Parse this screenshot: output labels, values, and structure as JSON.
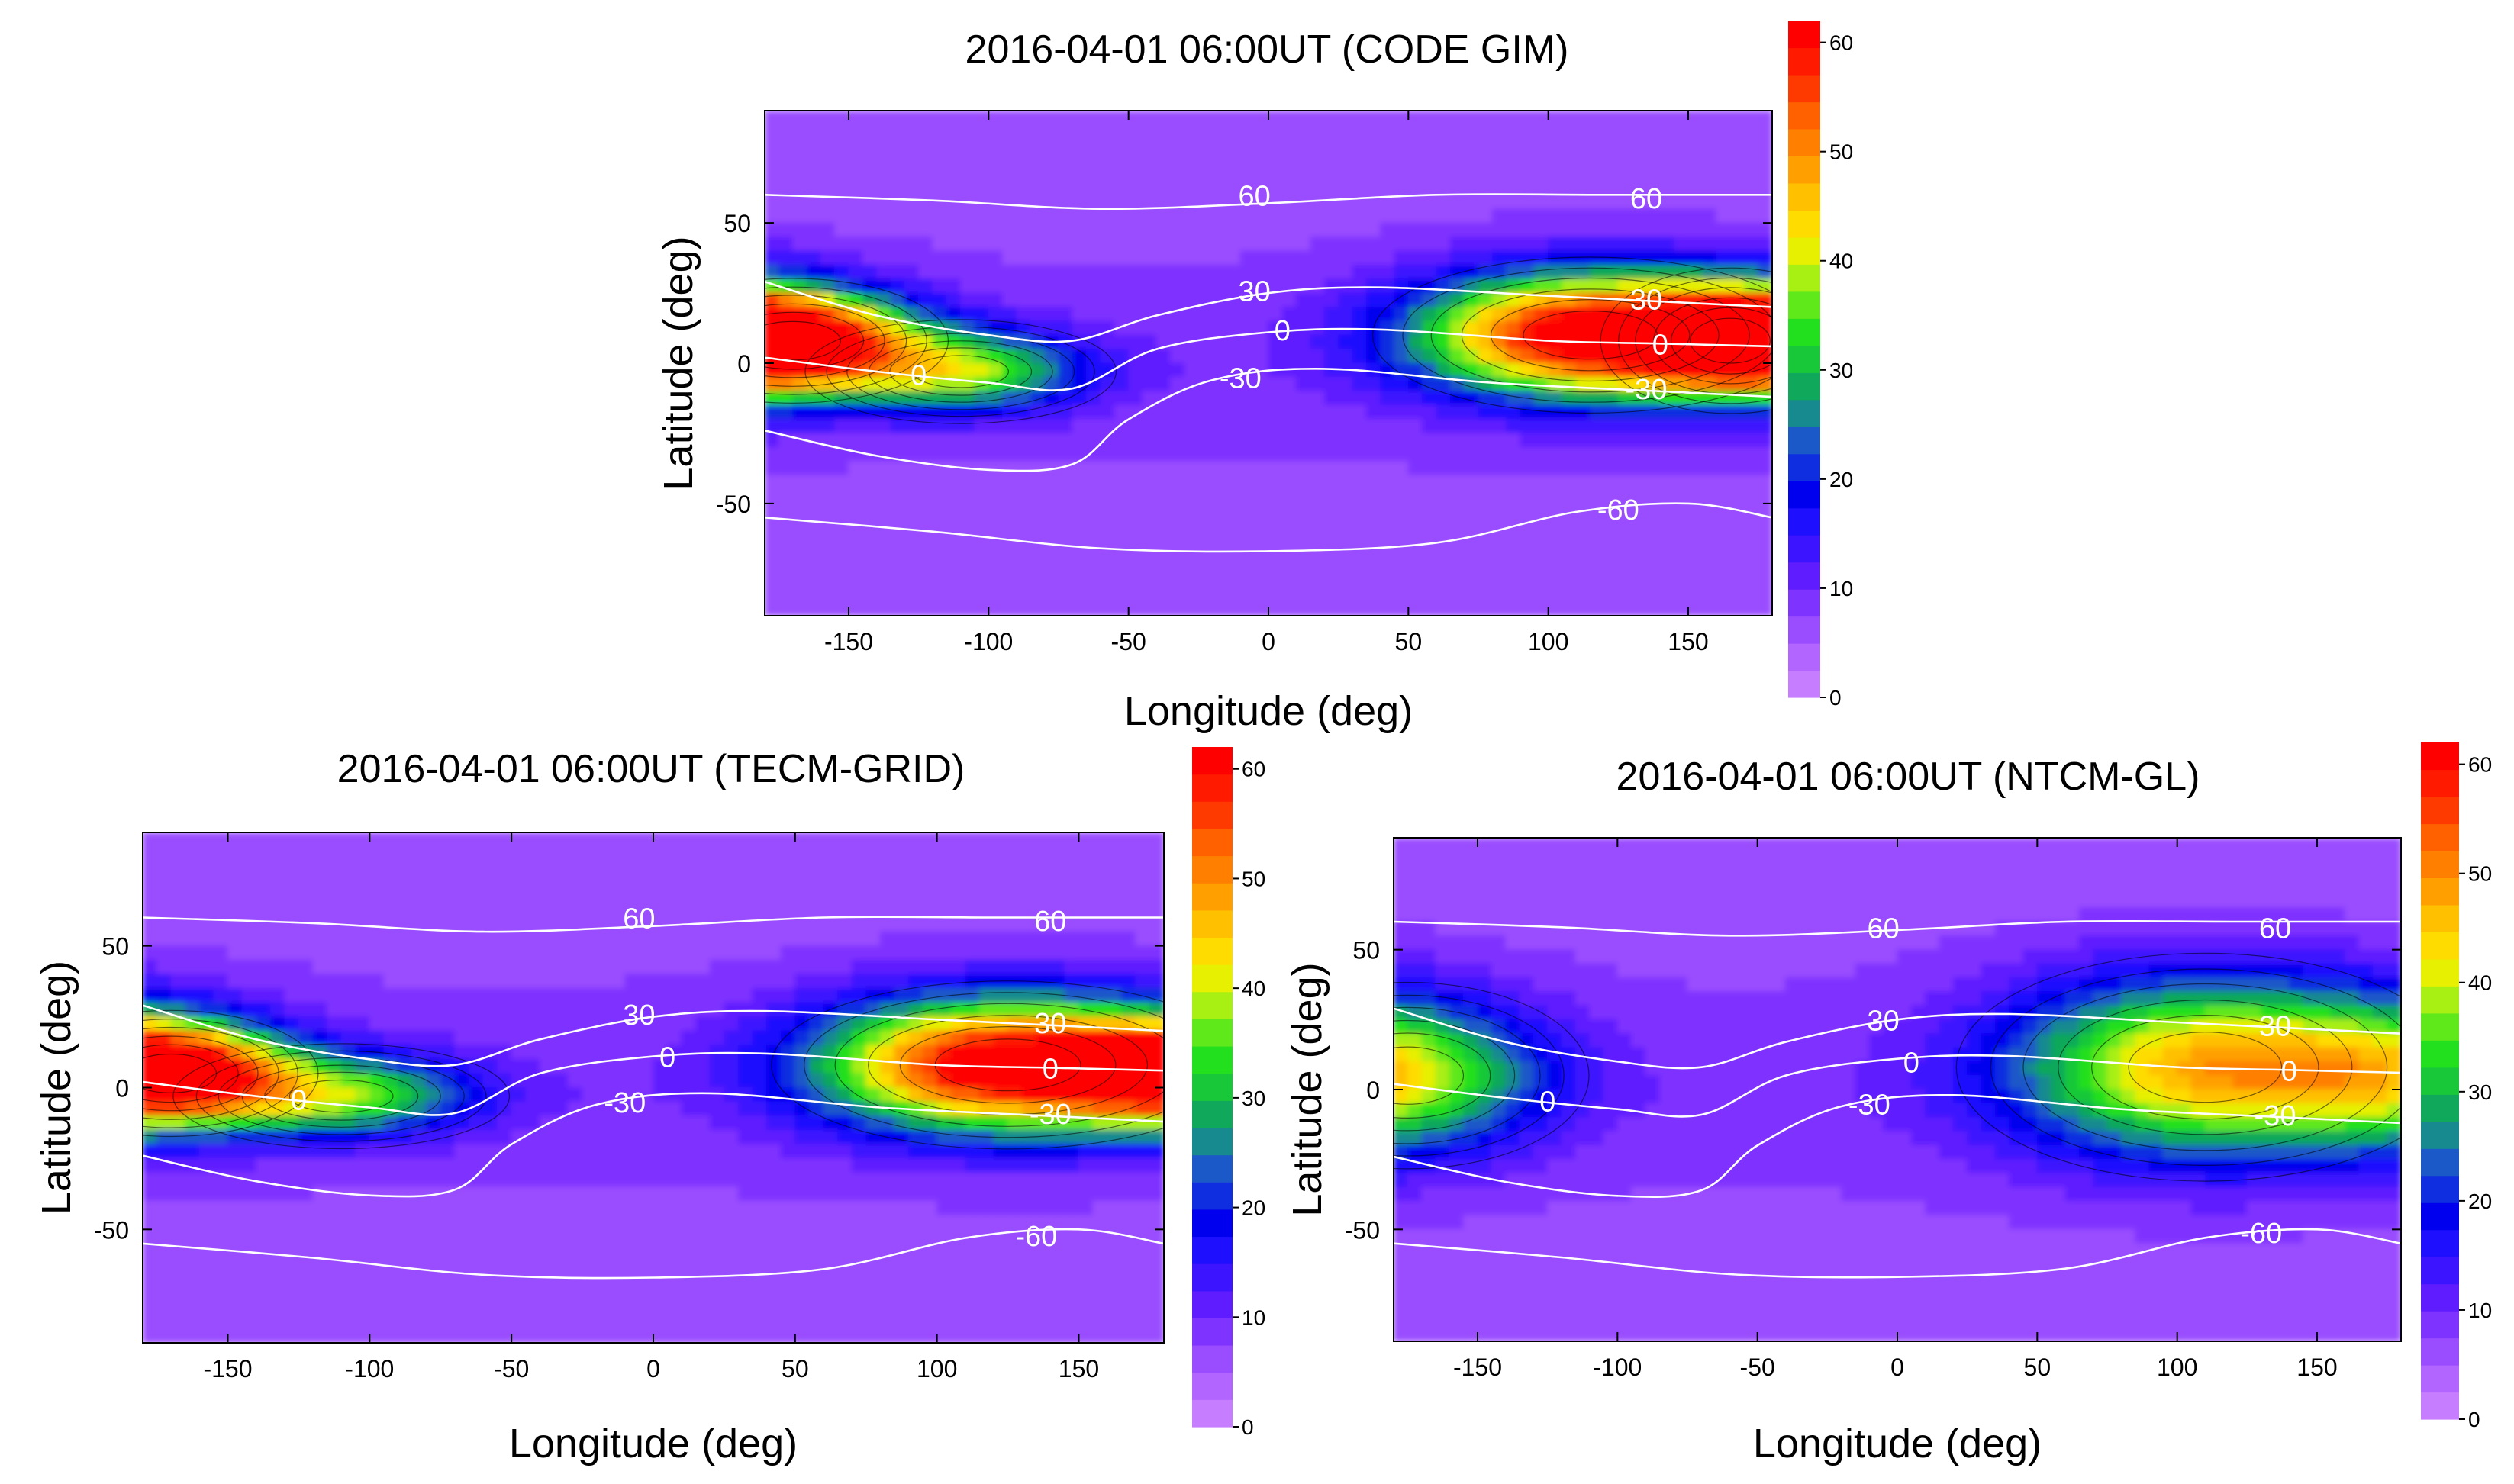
{
  "colors": {
    "scale": [
      "#c77dff",
      "#b266ff",
      "#9a4dff",
      "#7f33ff",
      "#5e1cff",
      "#3d14ff",
      "#1f0fff",
      "#0000ee",
      "#0e2ee0",
      "#1b58c8",
      "#178a8f",
      "#10a85a",
      "#18c838",
      "#22e01e",
      "#5fe81a",
      "#a8ef14",
      "#e6f000",
      "#ffdc00",
      "#ffc000",
      "#ffa000",
      "#ff8000",
      "#ff6000",
      "#ff3a00",
      "#ff1a00",
      "#ff0000"
    ],
    "contour_line": "#000000",
    "mag_line": "#ffffff",
    "axis": "#000000"
  },
  "chart_data": [
    {
      "type": "heatmap",
      "title": "2016-04-01 06:00UT (CODE GIM)",
      "xlabel": "Longitude (deg)",
      "ylabel": "Latitude (deg)",
      "xlim": [
        -180,
        180
      ],
      "ylim": [
        -90,
        90
      ],
      "x_ticks": [
        -150,
        -100,
        -50,
        0,
        50,
        100,
        150
      ],
      "y_ticks": [
        50,
        0,
        -50
      ],
      "colorbar": {
        "range": [
          0,
          62
        ],
        "ticks": [
          0,
          10,
          20,
          30,
          40,
          50,
          60
        ]
      },
      "magnetic_latitude_lines": [
        {
          "label": "60",
          "points": [
            [
              -180,
              60
            ],
            [
              -120,
              58
            ],
            [
              -60,
              55
            ],
            [
              0,
              57
            ],
            [
              60,
              60
            ],
            [
              120,
              60
            ],
            [
              180,
              60
            ]
          ],
          "label_positions": [
            [
              -5,
              60
            ],
            [
              135,
              59
            ]
          ]
        },
        {
          "label": "30",
          "points": [
            [
              -180,
              29
            ],
            [
              -140,
              17
            ],
            [
              -100,
              10
            ],
            [
              -70,
              8
            ],
            [
              -40,
              17
            ],
            [
              0,
              25
            ],
            [
              40,
              27
            ],
            [
              100,
              24
            ],
            [
              140,
              22
            ],
            [
              180,
              20
            ]
          ],
          "label_positions": [
            [
              -5,
              26
            ],
            [
              135,
              23
            ]
          ]
        },
        {
          "label": "0",
          "points": [
            [
              -180,
              2
            ],
            [
              -140,
              -3
            ],
            [
              -100,
              -7
            ],
            [
              -70,
              -9
            ],
            [
              -40,
              5
            ],
            [
              0,
              11
            ],
            [
              40,
              12
            ],
            [
              100,
              8
            ],
            [
              140,
              7
            ],
            [
              180,
              6
            ]
          ],
          "label_positions": [
            [
              -125,
              -4
            ],
            [
              5,
              12
            ],
            [
              140,
              7
            ]
          ]
        },
        {
          "label": "-30",
          "points": [
            [
              -180,
              -24
            ],
            [
              -140,
              -33
            ],
            [
              -100,
              -38
            ],
            [
              -70,
              -36
            ],
            [
              -50,
              -20
            ],
            [
              -20,
              -6
            ],
            [
              20,
              -2
            ],
            [
              80,
              -7
            ],
            [
              140,
              -10
            ],
            [
              180,
              -12
            ]
          ],
          "label_positions": [
            [
              -10,
              -5
            ],
            [
              135,
              -9
            ]
          ]
        },
        {
          "label": "-60",
          "points": [
            [
              -180,
              -55
            ],
            [
              -120,
              -60
            ],
            [
              -60,
              -66
            ],
            [
              0,
              -67
            ],
            [
              60,
              -64
            ],
            [
              110,
              -53
            ],
            [
              150,
              -50
            ],
            [
              180,
              -55
            ]
          ],
          "label_positions": [
            [
              125,
              -52
            ]
          ]
        }
      ],
      "tec_peaks": [
        {
          "lon": 115,
          "lat": 10,
          "value": 60,
          "sigma_lon": 42,
          "sigma_lat": 15
        },
        {
          "lon": 165,
          "lat": 8,
          "value": 24,
          "sigma_lon": 25,
          "sigma_lat": 14
        },
        {
          "lon": -170,
          "lat": 8,
          "value": 56,
          "sigma_lon": 30,
          "sigma_lat": 12
        },
        {
          "lon": -110,
          "lat": -3,
          "value": 30,
          "sigma_lon": 30,
          "sigma_lat": 10
        }
      ]
    },
    {
      "type": "heatmap",
      "title": "2016-04-01 06:00UT (TECM-GRID)",
      "xlabel": "Longitude (deg)",
      "ylabel": "Latitude (deg)",
      "xlim": [
        -180,
        180
      ],
      "ylim": [
        -90,
        90
      ],
      "x_ticks": [
        -150,
        -100,
        -50,
        0,
        50,
        100,
        150
      ],
      "y_ticks": [
        50,
        0,
        -50
      ],
      "colorbar": {
        "range": [
          0,
          62
        ],
        "ticks": [
          0,
          10,
          20,
          30,
          40,
          50,
          60
        ]
      },
      "magnetic_latitude_lines": [
        {
          "label": "60",
          "points": [
            [
              -180,
              60
            ],
            [
              -120,
              58
            ],
            [
              -60,
              55
            ],
            [
              0,
              57
            ],
            [
              60,
              60
            ],
            [
              120,
              60
            ],
            [
              180,
              60
            ]
          ],
          "label_positions": [
            [
              -5,
              60
            ],
            [
              140,
              59
            ]
          ]
        },
        {
          "label": "30",
          "points": [
            [
              -180,
              29
            ],
            [
              -140,
              17
            ],
            [
              -100,
              10
            ],
            [
              -70,
              8
            ],
            [
              -40,
              17
            ],
            [
              0,
              25
            ],
            [
              40,
              27
            ],
            [
              100,
              24
            ],
            [
              140,
              22
            ],
            [
              180,
              20
            ]
          ],
          "label_positions": [
            [
              -5,
              26
            ],
            [
              140,
              23
            ]
          ]
        },
        {
          "label": "0",
          "points": [
            [
              -180,
              2
            ],
            [
              -140,
              -3
            ],
            [
              -100,
              -7
            ],
            [
              -70,
              -9
            ],
            [
              -40,
              5
            ],
            [
              0,
              11
            ],
            [
              40,
              12
            ],
            [
              100,
              8
            ],
            [
              140,
              7
            ],
            [
              180,
              6
            ]
          ],
          "label_positions": [
            [
              -125,
              -4
            ],
            [
              5,
              11
            ],
            [
              140,
              7
            ]
          ]
        },
        {
          "label": "-30",
          "points": [
            [
              -180,
              -24
            ],
            [
              -140,
              -33
            ],
            [
              -100,
              -38
            ],
            [
              -70,
              -36
            ],
            [
              -50,
              -20
            ],
            [
              -20,
              -6
            ],
            [
              20,
              -2
            ],
            [
              80,
              -7
            ],
            [
              140,
              -10
            ],
            [
              180,
              -12
            ]
          ],
          "label_positions": [
            [
              -10,
              -5
            ],
            [
              140,
              -9
            ]
          ]
        },
        {
          "label": "-60",
          "points": [
            [
              -180,
              -55
            ],
            [
              -120,
              -60
            ],
            [
              -60,
              -66
            ],
            [
              0,
              -67
            ],
            [
              60,
              -64
            ],
            [
              110,
              -53
            ],
            [
              150,
              -50
            ],
            [
              180,
              -55
            ]
          ],
          "label_positions": [
            [
              135,
              -52
            ]
          ]
        }
      ],
      "tec_peaks": [
        {
          "lon": 125,
          "lat": 8,
          "value": 60,
          "sigma_lon": 45,
          "sigma_lat": 16
        },
        {
          "lon": -170,
          "lat": 5,
          "value": 54,
          "sigma_lon": 28,
          "sigma_lat": 12
        },
        {
          "lon": -110,
          "lat": -3,
          "value": 28,
          "sigma_lon": 32,
          "sigma_lat": 10
        }
      ]
    },
    {
      "type": "heatmap",
      "title": "2016-04-01 06:00UT (NTCM-GL)",
      "xlabel": "Longitude (deg)",
      "ylabel": "Latitude (deg)",
      "xlim": [
        -180,
        180
      ],
      "ylim": [
        -90,
        90
      ],
      "x_ticks": [
        -150,
        -100,
        -50,
        0,
        50,
        100,
        150
      ],
      "y_ticks": [
        50,
        0,
        -50
      ],
      "colorbar": {
        "range": [
          0,
          62
        ],
        "ticks": [
          0,
          10,
          20,
          30,
          40,
          50,
          60
        ]
      },
      "magnetic_latitude_lines": [
        {
          "label": "60",
          "points": [
            [
              -180,
              60
            ],
            [
              -120,
              58
            ],
            [
              -60,
              55
            ],
            [
              0,
              57
            ],
            [
              60,
              60
            ],
            [
              120,
              60
            ],
            [
              180,
              60
            ]
          ],
          "label_positions": [
            [
              -5,
              58
            ],
            [
              135,
              58
            ]
          ]
        },
        {
          "label": "30",
          "points": [
            [
              -180,
              29
            ],
            [
              -140,
              17
            ],
            [
              -100,
              10
            ],
            [
              -70,
              8
            ],
            [
              -40,
              17
            ],
            [
              0,
              25
            ],
            [
              40,
              27
            ],
            [
              100,
              24
            ],
            [
              140,
              22
            ],
            [
              180,
              20
            ]
          ],
          "label_positions": [
            [
              -5,
              25
            ],
            [
              135,
              23
            ]
          ]
        },
        {
          "label": "0",
          "points": [
            [
              -180,
              2
            ],
            [
              -140,
              -3
            ],
            [
              -100,
              -7
            ],
            [
              -70,
              -9
            ],
            [
              -40,
              5
            ],
            [
              0,
              11
            ],
            [
              40,
              12
            ],
            [
              100,
              8
            ],
            [
              140,
              7
            ],
            [
              180,
              6
            ]
          ],
          "label_positions": [
            [
              -125,
              -4
            ],
            [
              5,
              10
            ],
            [
              140,
              7
            ]
          ]
        },
        {
          "label": "-30",
          "points": [
            [
              -180,
              -24
            ],
            [
              -140,
              -33
            ],
            [
              -100,
              -38
            ],
            [
              -70,
              -36
            ],
            [
              -50,
              -20
            ],
            [
              -20,
              -6
            ],
            [
              20,
              -2
            ],
            [
              80,
              -7
            ],
            [
              140,
              -10
            ],
            [
              180,
              -12
            ]
          ],
          "label_positions": [
            [
              -10,
              -5
            ],
            [
              135,
              -9
            ]
          ]
        },
        {
          "label": "-60",
          "points": [
            [
              -180,
              -55
            ],
            [
              -120,
              -60
            ],
            [
              -60,
              -66
            ],
            [
              0,
              -67
            ],
            [
              60,
              -64
            ],
            [
              110,
              -53
            ],
            [
              150,
              -50
            ],
            [
              180,
              -55
            ]
          ],
          "label_positions": [
            [
              130,
              -51
            ]
          ]
        }
      ],
      "tec_peaks": [
        {
          "lon": 110,
          "lat": 8,
          "value": 40,
          "sigma_lon": 48,
          "sigma_lat": 22
        },
        {
          "lon": -175,
          "lat": 5,
          "value": 26,
          "sigma_lon": 35,
          "sigma_lat": 18
        }
      ]
    }
  ]
}
